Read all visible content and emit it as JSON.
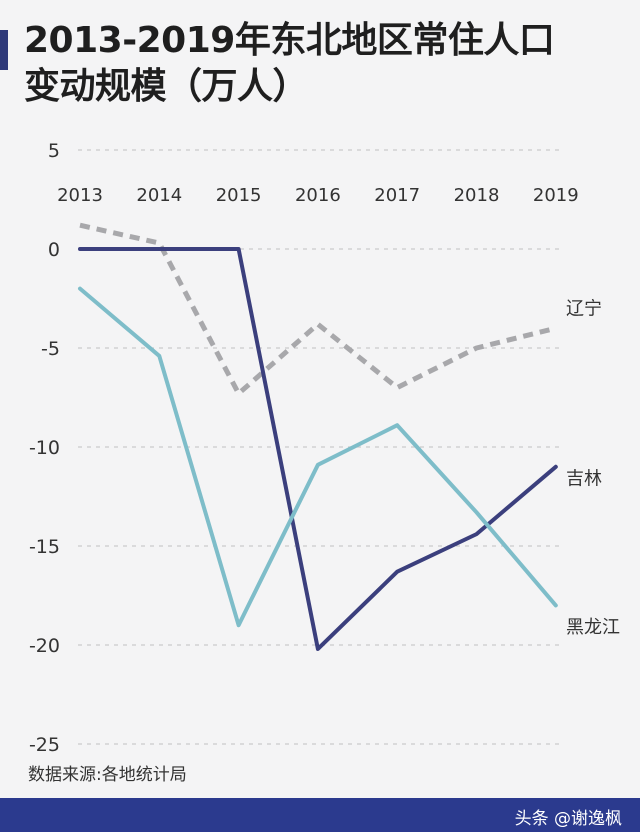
{
  "header": {
    "title_line1": "2013-2019年东北地区常住人口",
    "title_line2": "变动规模（万人）"
  },
  "chart_data": {
    "type": "line",
    "x": [
      "2013",
      "2014",
      "2015",
      "2016",
      "2017",
      "2018",
      "2019"
    ],
    "ylim": [
      -25,
      5
    ],
    "yticks": [
      "5",
      "0",
      "-5",
      "-10",
      "-15",
      "-20",
      "-25"
    ],
    "grid": true,
    "series": [
      {
        "name": "辽宁",
        "values": [
          1.2,
          0.3,
          -7.3,
          -3.8,
          -7.0,
          -5.0,
          -4.0
        ],
        "color": "#a8a8ab",
        "style": "dashed"
      },
      {
        "name": "吉林",
        "values": [
          0,
          0,
          0,
          -20.2,
          -16.3,
          -14.4,
          -11.0
        ],
        "color": "#3b3f7d",
        "style": "solid"
      },
      {
        "name": "黑龙江",
        "values": [
          -2.0,
          -5.4,
          -19.0,
          -10.9,
          -8.9,
          -13.3,
          -18.0
        ],
        "color": "#7ebdc9",
        "style": "solid"
      }
    ]
  },
  "source_note": "数据来源:各地统计局",
  "footer": {
    "credit": "头条 @谢逸枫"
  }
}
